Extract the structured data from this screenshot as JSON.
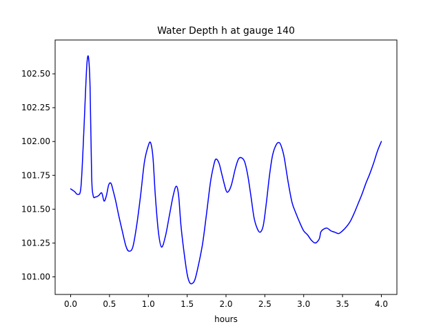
{
  "chart_data": {
    "type": "line",
    "title": "Water Depth h at gauge 140",
    "xlabel": "hours",
    "ylabel": "",
    "xlim": [
      -0.2,
      4.2
    ],
    "ylim": [
      100.87,
      102.75
    ],
    "xticks": [
      0.0,
      0.5,
      1.0,
      1.5,
      2.0,
      2.5,
      3.0,
      3.5,
      4.0
    ],
    "xtick_labels": [
      "0.0",
      "0.5",
      "1.0",
      "1.5",
      "2.0",
      "2.5",
      "3.0",
      "3.5",
      "4.0"
    ],
    "yticks": [
      101.0,
      101.25,
      101.5,
      101.75,
      102.0,
      102.25,
      102.5
    ],
    "ytick_labels": [
      "101.00",
      "101.25",
      "101.50",
      "101.75",
      "102.00",
      "102.25",
      "102.50"
    ],
    "grid": false,
    "line_color": "#0000ff",
    "series": [
      {
        "x": [
          0.0,
          0.05,
          0.09,
          0.13,
          0.16,
          0.19,
          0.21,
          0.23,
          0.25,
          0.27,
          0.29,
          0.32,
          0.36,
          0.4,
          0.43,
          0.46,
          0.49,
          0.52,
          0.55,
          0.58,
          0.62,
          0.66,
          0.71,
          0.75,
          0.8,
          0.85,
          0.9,
          0.95,
          1.0,
          1.03,
          1.06,
          1.09,
          1.13,
          1.17,
          1.22,
          1.27,
          1.32,
          1.36,
          1.39,
          1.42,
          1.46,
          1.5,
          1.53,
          1.56,
          1.6,
          1.65,
          1.7,
          1.75,
          1.8,
          1.84,
          1.87,
          1.91,
          1.95,
          2.0,
          2.03,
          2.07,
          2.12,
          2.16,
          2.2,
          2.24,
          2.28,
          2.32,
          2.36,
          2.4,
          2.44,
          2.48,
          2.52,
          2.56,
          2.6,
          2.65,
          2.69,
          2.72,
          2.75,
          2.8,
          2.85,
          2.9,
          2.95,
          3.0,
          3.05,
          3.1,
          3.15,
          3.2,
          3.22,
          3.25,
          3.3,
          3.35,
          3.4,
          3.45,
          3.5,
          3.55,
          3.6,
          3.65,
          3.7,
          3.75,
          3.8,
          3.85,
          3.9,
          3.95,
          4.0
        ],
        "y": [
          101.65,
          101.63,
          101.61,
          101.65,
          101.95,
          102.35,
          102.58,
          102.62,
          102.4,
          101.75,
          101.6,
          101.59,
          101.6,
          101.62,
          101.56,
          101.6,
          101.68,
          101.69,
          101.63,
          101.56,
          101.45,
          101.35,
          101.23,
          101.19,
          101.22,
          101.38,
          101.6,
          101.85,
          101.97,
          101.99,
          101.88,
          101.6,
          101.33,
          101.22,
          101.3,
          101.45,
          101.6,
          101.67,
          101.6,
          101.38,
          101.18,
          101.02,
          100.96,
          100.95,
          100.98,
          101.1,
          101.25,
          101.47,
          101.7,
          101.82,
          101.87,
          101.84,
          101.75,
          101.64,
          101.63,
          101.68,
          101.8,
          101.87,
          101.88,
          101.85,
          101.75,
          101.6,
          101.44,
          101.36,
          101.33,
          101.38,
          101.55,
          101.75,
          101.9,
          101.98,
          101.99,
          101.95,
          101.88,
          101.7,
          101.55,
          101.47,
          101.4,
          101.34,
          101.31,
          101.27,
          101.25,
          101.28,
          101.33,
          101.35,
          101.36,
          101.34,
          101.33,
          101.32,
          101.34,
          101.37,
          101.41,
          101.47,
          101.54,
          101.61,
          101.69,
          101.76,
          101.84,
          101.93,
          102.0
        ]
      }
    ]
  }
}
